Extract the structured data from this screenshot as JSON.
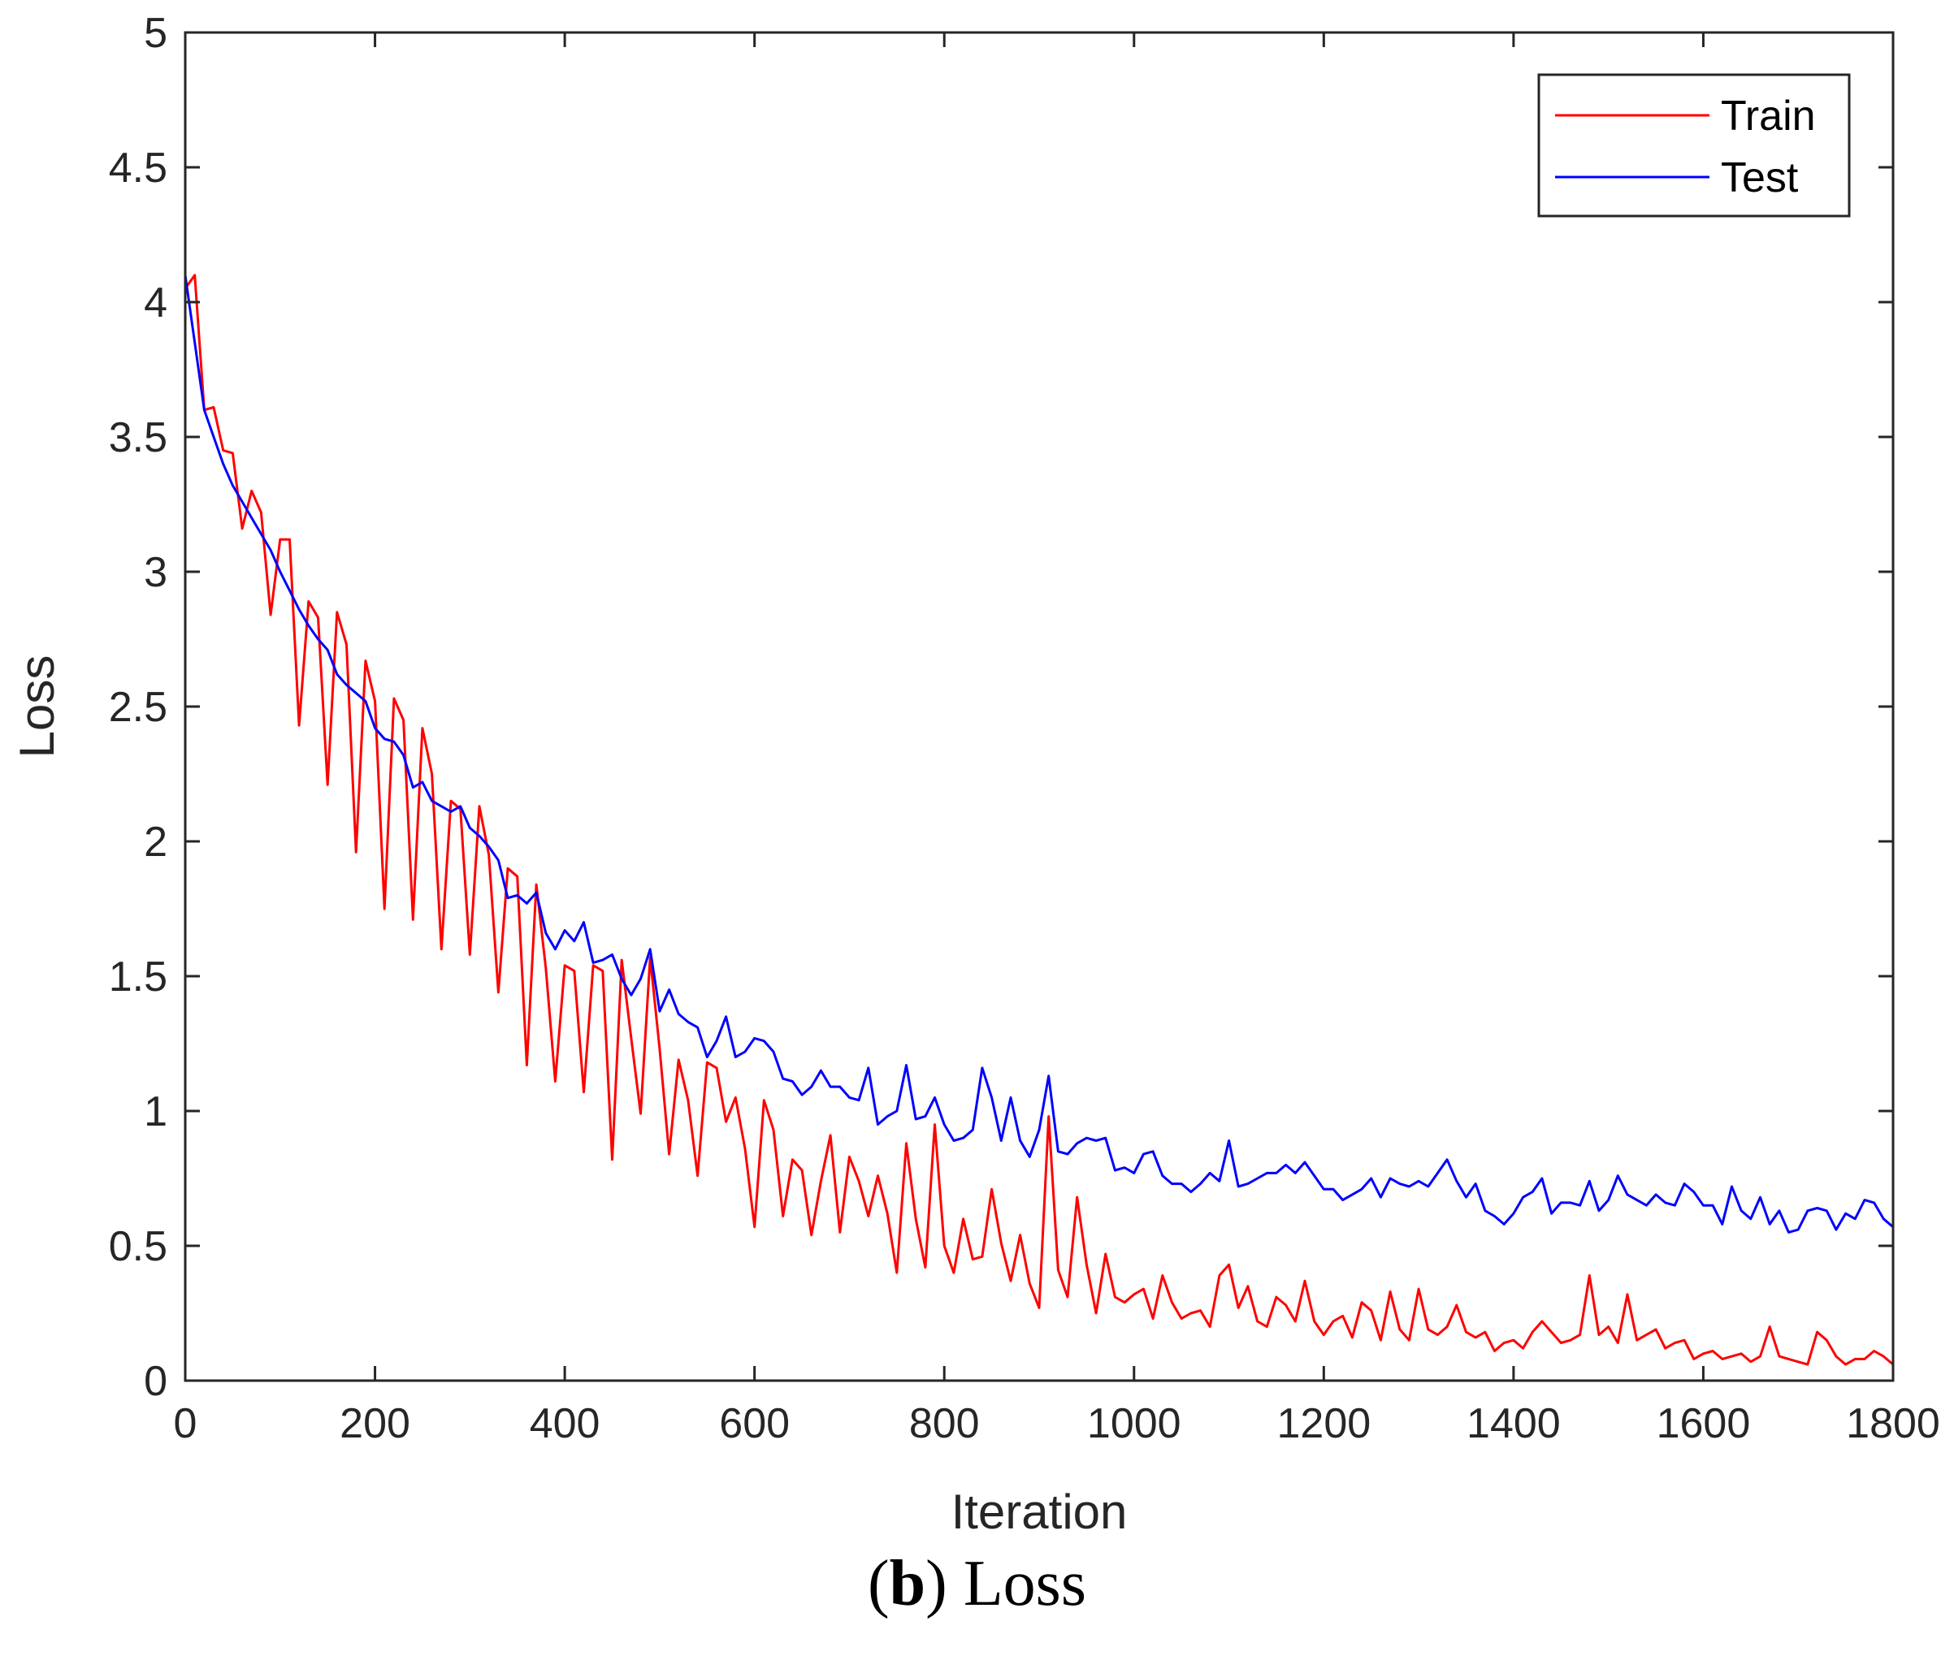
{
  "chart_data": {
    "type": "line",
    "title": "",
    "xlabel": "Iteration",
    "ylabel": "Loss",
    "xlim": [
      0,
      1800
    ],
    "ylim": [
      0,
      5
    ],
    "xticks": [
      0,
      200,
      400,
      600,
      800,
      1000,
      1200,
      1400,
      1600,
      1800
    ],
    "yticks": [
      0,
      0.5,
      1,
      1.5,
      2,
      2.5,
      3,
      3.5,
      4,
      4.5,
      5
    ],
    "xtick_labels": [
      "0",
      "200",
      "400",
      "600",
      "800",
      "1000",
      "1200",
      "1400",
      "1600",
      "1800"
    ],
    "ytick_labels": [
      "0",
      "0.5",
      "1",
      "1.5",
      "2",
      "2.5",
      "3",
      "3.5",
      "4",
      "4.5",
      "5"
    ],
    "grid": false,
    "legend_position": "top-right",
    "series": [
      {
        "name": "Train",
        "color": "#ff0000",
        "x": [
          0,
          10,
          20,
          30,
          40,
          50,
          60,
          70,
          80,
          90,
          100,
          110,
          120,
          130,
          140,
          150,
          160,
          170,
          180,
          190,
          200,
          210,
          220,
          230,
          240,
          250,
          260,
          270,
          280,
          290,
          300,
          310,
          320,
          330,
          340,
          350,
          360,
          370,
          380,
          390,
          400,
          410,
          420,
          430,
          440,
          450,
          460,
          470,
          480,
          490,
          500,
          510,
          520,
          530,
          540,
          550,
          560,
          570,
          580,
          590,
          600,
          610,
          620,
          630,
          640,
          650,
          660,
          670,
          680,
          690,
          700,
          710,
          720,
          730,
          740,
          750,
          760,
          770,
          780,
          790,
          800,
          810,
          820,
          830,
          840,
          850,
          860,
          870,
          880,
          890,
          900,
          910,
          920,
          930,
          940,
          950,
          960,
          970,
          980,
          990,
          1000,
          1010,
          1020,
          1030,
          1040,
          1050,
          1060,
          1070,
          1080,
          1090,
          1100,
          1110,
          1120,
          1130,
          1140,
          1150,
          1160,
          1170,
          1180,
          1190,
          1200,
          1210,
          1220,
          1230,
          1240,
          1250,
          1260,
          1270,
          1280,
          1290,
          1300,
          1310,
          1320,
          1330,
          1340,
          1350,
          1360,
          1370,
          1380,
          1390,
          1400,
          1410,
          1420,
          1430,
          1440,
          1450,
          1460,
          1470,
          1480,
          1490,
          1500,
          1510,
          1520,
          1530,
          1540,
          1550,
          1560,
          1570,
          1580,
          1590,
          1600,
          1610,
          1620,
          1630,
          1640,
          1650,
          1660,
          1670,
          1680,
          1690,
          1700,
          1710,
          1720,
          1730,
          1740,
          1750,
          1760,
          1770,
          1780,
          1790,
          1800
        ],
        "values": [
          4.05,
          4.1,
          3.6,
          3.61,
          3.45,
          3.44,
          3.16,
          3.3,
          3.22,
          2.84,
          3.12,
          3.12,
          2.43,
          2.89,
          2.83,
          2.21,
          2.85,
          2.73,
          1.96,
          2.67,
          2.52,
          1.75,
          2.53,
          2.45,
          1.71,
          2.42,
          2.25,
          1.6,
          2.15,
          2.12,
          1.58,
          2.13,
          1.95,
          1.44,
          1.9,
          1.87,
          1.17,
          1.84,
          1.53,
          1.11,
          1.54,
          1.52,
          1.07,
          1.54,
          1.52,
          0.82,
          1.56,
          1.27,
          0.99,
          1.57,
          1.23,
          0.84,
          1.19,
          1.04,
          0.76,
          1.18,
          1.16,
          0.96,
          1.05,
          0.86,
          0.57,
          1.04,
          0.93,
          0.61,
          0.82,
          0.78,
          0.54,
          0.74,
          0.91,
          0.55,
          0.83,
          0.74,
          0.61,
          0.76,
          0.62,
          0.4,
          0.88,
          0.6,
          0.42,
          0.95,
          0.5,
          0.4,
          0.6,
          0.45,
          0.46,
          0.71,
          0.51,
          0.37,
          0.54,
          0.36,
          0.27,
          0.98,
          0.41,
          0.31,
          0.68,
          0.43,
          0.25,
          0.47,
          0.31,
          0.29,
          0.32,
          0.34,
          0.23,
          0.39,
          0.29,
          0.23,
          0.25,
          0.26,
          0.2,
          0.39,
          0.43,
          0.27,
          0.35,
          0.22,
          0.2,
          0.31,
          0.28,
          0.22,
          0.37,
          0.22,
          0.17,
          0.22,
          0.24,
          0.16,
          0.29,
          0.26,
          0.15,
          0.33,
          0.19,
          0.15,
          0.34,
          0.19,
          0.17,
          0.2,
          0.28,
          0.18,
          0.16,
          0.18,
          0.11,
          0.14,
          0.15,
          0.12,
          0.18,
          0.22,
          0.18,
          0.14,
          0.15,
          0.17,
          0.39,
          0.17,
          0.2,
          0.14,
          0.32,
          0.15,
          0.17,
          0.19,
          0.12,
          0.14,
          0.15,
          0.08,
          0.1,
          0.11,
          0.08,
          0.09,
          0.1,
          0.07,
          0.09,
          0.2,
          0.09,
          0.08,
          0.07,
          0.06,
          0.18,
          0.15,
          0.09,
          0.06,
          0.08,
          0.08,
          0.11,
          0.09,
          0.06
        ]
      },
      {
        "name": "Test",
        "color": "#0000ff",
        "x": [
          0,
          10,
          20,
          30,
          40,
          50,
          60,
          70,
          80,
          90,
          100,
          110,
          120,
          130,
          140,
          150,
          160,
          170,
          180,
          190,
          200,
          210,
          220,
          230,
          240,
          250,
          260,
          270,
          280,
          290,
          300,
          310,
          320,
          330,
          340,
          350,
          360,
          370,
          380,
          390,
          400,
          410,
          420,
          430,
          440,
          450,
          460,
          470,
          480,
          490,
          500,
          510,
          520,
          530,
          540,
          550,
          560,
          570,
          580,
          590,
          600,
          610,
          620,
          630,
          640,
          650,
          660,
          670,
          680,
          690,
          700,
          710,
          720,
          730,
          740,
          750,
          760,
          770,
          780,
          790,
          800,
          810,
          820,
          830,
          840,
          850,
          860,
          870,
          880,
          890,
          900,
          910,
          920,
          930,
          940,
          950,
          960,
          970,
          980,
          990,
          1000,
          1010,
          1020,
          1030,
          1040,
          1050,
          1060,
          1070,
          1080,
          1090,
          1100,
          1110,
          1120,
          1130,
          1140,
          1150,
          1160,
          1170,
          1180,
          1190,
          1200,
          1210,
          1220,
          1230,
          1240,
          1250,
          1260,
          1270,
          1280,
          1290,
          1300,
          1310,
          1320,
          1330,
          1340,
          1350,
          1360,
          1370,
          1380,
          1390,
          1400,
          1410,
          1420,
          1430,
          1440,
          1450,
          1460,
          1470,
          1480,
          1490,
          1500,
          1510,
          1520,
          1530,
          1540,
          1550,
          1560,
          1570,
          1580,
          1590,
          1600,
          1610,
          1620,
          1630,
          1640,
          1650,
          1660,
          1670,
          1680,
          1690,
          1700,
          1710,
          1720,
          1730,
          1740,
          1750,
          1760,
          1770,
          1780,
          1790,
          1800
        ],
        "values": [
          4.1,
          3.85,
          3.6,
          3.5,
          3.4,
          3.32,
          3.26,
          3.2,
          3.14,
          3.08,
          3.0,
          2.93,
          2.86,
          2.8,
          2.75,
          2.71,
          2.62,
          2.58,
          2.55,
          2.52,
          2.42,
          2.38,
          2.37,
          2.32,
          2.2,
          2.22,
          2.15,
          2.13,
          2.11,
          2.13,
          2.05,
          2.02,
          1.98,
          1.93,
          1.79,
          1.8,
          1.77,
          1.81,
          1.66,
          1.6,
          1.67,
          1.63,
          1.7,
          1.55,
          1.56,
          1.58,
          1.49,
          1.43,
          1.49,
          1.6,
          1.37,
          1.45,
          1.36,
          1.33,
          1.31,
          1.2,
          1.26,
          1.35,
          1.2,
          1.22,
          1.27,
          1.26,
          1.22,
          1.12,
          1.11,
          1.06,
          1.09,
          1.15,
          1.09,
          1.09,
          1.05,
          1.04,
          1.16,
          0.95,
          0.98,
          1.0,
          1.17,
          0.97,
          0.98,
          1.05,
          0.95,
          0.89,
          0.9,
          0.93,
          1.16,
          1.05,
          0.89,
          1.05,
          0.89,
          0.83,
          0.93,
          1.13,
          0.85,
          0.84,
          0.88,
          0.9,
          0.89,
          0.9,
          0.78,
          0.79,
          0.77,
          0.84,
          0.85,
          0.76,
          0.73,
          0.73,
          0.7,
          0.73,
          0.77,
          0.74,
          0.89,
          0.72,
          0.73,
          0.75,
          0.77,
          0.77,
          0.8,
          0.77,
          0.81,
          0.76,
          0.71,
          0.71,
          0.67,
          0.69,
          0.71,
          0.75,
          0.68,
          0.75,
          0.73,
          0.72,
          0.74,
          0.72,
          0.77,
          0.82,
          0.74,
          0.68,
          0.73,
          0.63,
          0.61,
          0.58,
          0.62,
          0.68,
          0.7,
          0.75,
          0.62,
          0.66,
          0.66,
          0.65,
          0.74,
          0.63,
          0.67,
          0.76,
          0.69,
          0.67,
          0.65,
          0.69,
          0.66,
          0.65,
          0.73,
          0.7,
          0.65,
          0.65,
          0.58,
          0.72,
          0.63,
          0.6,
          0.68,
          0.58,
          0.63,
          0.55,
          0.56,
          0.63,
          0.64,
          0.63,
          0.56,
          0.62,
          0.6,
          0.67,
          0.66,
          0.6,
          0.57
        ]
      }
    ]
  },
  "caption": {
    "label": "(b)",
    "label_open": "(",
    "label_letter": "b",
    "label_close": ")",
    "text": "Loss"
  }
}
